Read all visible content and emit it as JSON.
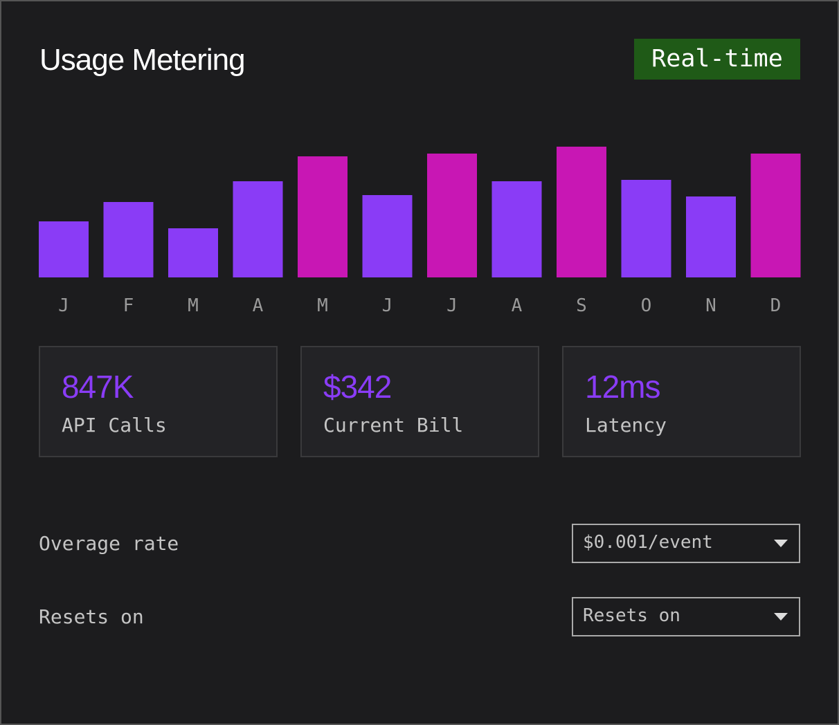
{
  "header": {
    "title": "Usage Metering",
    "badge": "Real-time"
  },
  "chart_data": {
    "type": "bar",
    "categories": [
      "J",
      "F",
      "M",
      "A",
      "M",
      "J",
      "J",
      "A",
      "S",
      "O",
      "N",
      "D"
    ],
    "values": [
      81,
      109,
      71,
      139,
      175,
      119,
      179,
      139,
      189,
      141,
      117,
      179
    ],
    "colors": [
      "#8a3cf6",
      "#8a3cf6",
      "#8a3cf6",
      "#8a3cf6",
      "#c817b4",
      "#8a3cf6",
      "#c817b4",
      "#8a3cf6",
      "#c817b4",
      "#8a3cf6",
      "#8a3cf6",
      "#c817b4"
    ],
    "ylim": [
      0,
      200
    ]
  },
  "stats": [
    {
      "value": "847K",
      "label": "API Calls"
    },
    {
      "value": "$342",
      "label": "Current Bill"
    },
    {
      "value": "12ms",
      "label": "Latency"
    }
  ],
  "settings": [
    {
      "label": "Overage rate",
      "selected": "$0.001/event"
    },
    {
      "label": "Resets on",
      "selected": "Resets on"
    }
  ]
}
